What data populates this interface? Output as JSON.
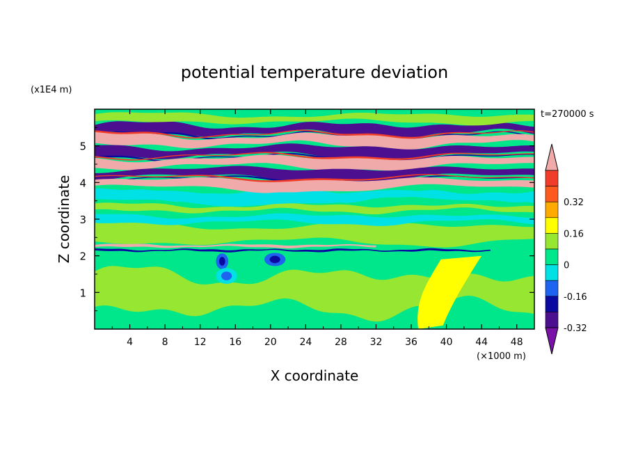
{
  "chart_data": {
    "type": "contour",
    "title": "potential temperature deviation",
    "xlabel": "X coordinate",
    "ylabel": "Z coordinate",
    "x_unit": "(×1000 m)",
    "y_unit": "(x1E4 m)",
    "time_label": "t=270000 s",
    "xlim": [
      0,
      50
    ],
    "ylim": [
      0,
      6
    ],
    "xticks": [
      "4",
      "8",
      "12",
      "16",
      "20",
      "24",
      "28",
      "32",
      "36",
      "40",
      "44",
      "48"
    ],
    "yticks": [
      "1",
      "2",
      "3",
      "4",
      "5"
    ],
    "colorbar": {
      "labels": [
        "0.32",
        "0.16",
        "0",
        "-0.16",
        "-0.32"
      ],
      "levels": [
        -0.4,
        -0.32,
        -0.24,
        -0.16,
        -0.08,
        0,
        0.08,
        0.16,
        0.24,
        0.32,
        0.4
      ],
      "colors": [
        "#7b12a8",
        "#4b0f8f",
        "#0a0aa0",
        "#1e64f0",
        "#00e1e6",
        "#00e68a",
        "#96e632",
        "#ffff00",
        "#ffaa00",
        "#ff5a1e",
        "#f03c28",
        "#f0aaaa"
      ]
    },
    "features": [
      {
        "kind": "band",
        "z_center": 5.45,
        "anomaly": "negative",
        "level": -0.32
      },
      {
        "kind": "band",
        "z_center": 5.15,
        "anomaly": "positive",
        "level": 0.4
      },
      {
        "kind": "band",
        "z_center": 4.85,
        "anomaly": "negative",
        "level": -0.32
      },
      {
        "kind": "band",
        "z_center": 4.55,
        "anomaly": "positive",
        "level": 0.4
      },
      {
        "kind": "band",
        "z_center": 4.25,
        "anomaly": "negative",
        "level": -0.4
      },
      {
        "kind": "band",
        "z_center": 3.95,
        "anomaly": "positive",
        "level": 0.4
      },
      {
        "kind": "band",
        "z_center": 3.6,
        "anomaly": "negative",
        "level": -0.08
      },
      {
        "kind": "line",
        "z_center": 2.15,
        "anomaly": "mixed",
        "level": 0.32
      },
      {
        "kind": "blob",
        "x_center": 38,
        "z_center": 1.3,
        "anomaly": "positive",
        "level": 0.16
      }
    ]
  }
}
